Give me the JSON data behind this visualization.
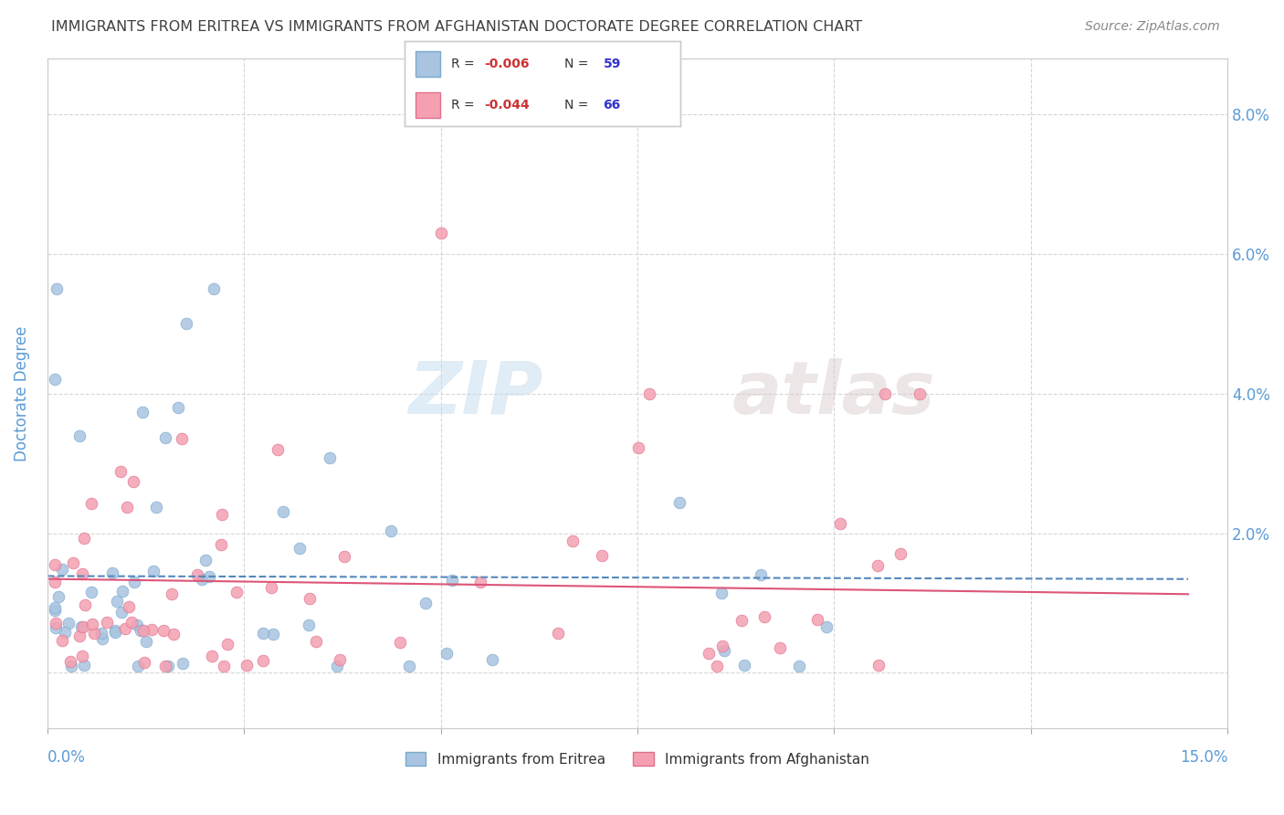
{
  "title": "IMMIGRANTS FROM ERITREA VS IMMIGRANTS FROM AFGHANISTAN DOCTORATE DEGREE CORRELATION CHART",
  "source": "Source: ZipAtlas.com",
  "ylabel": "Doctorate Degree",
  "right_yticklabels": [
    "",
    "2.0%",
    "4.0%",
    "6.0%",
    "8.0%"
  ],
  "xmin": 0.0,
  "xmax": 0.15,
  "ymin": -0.008,
  "ymax": 0.088,
  "series1_label": "Immigrants from Eritrea",
  "series1_color": "#a8c4e0",
  "series1_edge": "#7aaace",
  "series1_R": "-0.006",
  "series1_N": "59",
  "series2_label": "Immigrants from Afghanistan",
  "series2_color": "#f4a0b0",
  "series2_edge": "#e07090",
  "series2_R": "-0.044",
  "series2_N": "66",
  "trend1_color": "#5588bb",
  "trend2_color": "#dd5577",
  "watermark_zip": "ZIP",
  "watermark_atlas": "atlas",
  "background_color": "#ffffff",
  "title_color": "#404040",
  "axis_label_color": "#5b9bd5",
  "grid_color": "#cccccc",
  "legend_R_color": "#cc3333",
  "legend_N_color": "#3333cc"
}
